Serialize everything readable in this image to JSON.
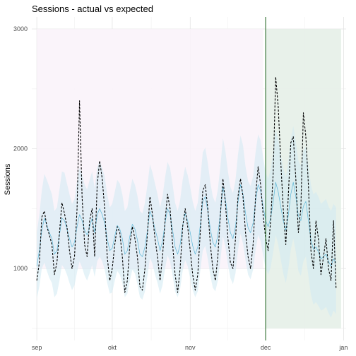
{
  "chart_data": {
    "type": "line",
    "title": "Sessions - actual vs expected",
    "xlabel": "",
    "ylabel": "Sessions",
    "x_start": "2017-09-01",
    "x_end": "2017-12-31",
    "xlim": [
      "2017-08-30",
      "2018-01-02"
    ],
    "ylim": [
      400,
      3100
    ],
    "x_ticks": [
      {
        "date": "2017-09-01",
        "label": "sep"
      },
      {
        "date": "2017-10-01",
        "label": "okt"
      },
      {
        "date": "2017-11-01",
        "label": "nov"
      },
      {
        "date": "2017-12-01",
        "label": "dec"
      },
      {
        "date": "2018-01-01",
        "label": "jan"
      }
    ],
    "y_ticks": [
      1000,
      2000,
      3000
    ],
    "grid": true,
    "legend": "none",
    "shaded_regions": [
      {
        "name": "pre-period",
        "x_start": "2017-09-01",
        "x_end": "2017-11-30",
        "y_min": 1000,
        "y_max": 3000,
        "color": "#f9f3f9"
      },
      {
        "name": "post-period",
        "x_start": "2017-12-01",
        "x_end": "2017-12-31",
        "y_min": 500,
        "y_max": 3000,
        "color": "#e5efe8"
      }
    ],
    "intervention": {
      "date": "2017-12-01",
      "color": "#1a5e1a"
    },
    "series": [
      {
        "style": "dashed",
        "color": "#000000",
        "values": [
          900,
          1050,
          1430,
          1480,
          1350,
          1280,
          1200,
          950,
          1050,
          1300,
          1550,
          1460,
          1350,
          1150,
          1000,
          1100,
          1500,
          2400,
          1600,
          1200,
          1100,
          1400,
          1500,
          1100,
          1700,
          1900,
          1750,
          1500,
          1100,
          900,
          1000,
          1200,
          1350,
          1300,
          1100,
          800,
          900,
          1200,
          1350,
          1250,
          1100,
          850,
          820,
          1000,
          1300,
          1600,
          1450,
          1250,
          1100,
          900,
          1100,
          1400,
          1620,
          1500,
          1200,
          950,
          800,
          1000,
          1350,
          1500,
          1350,
          1150,
          950,
          820,
          950,
          1300,
          1650,
          1700,
          1500,
          1200,
          1000,
          900,
          1100,
          1450,
          1750,
          1550,
          1250,
          1050,
          1000,
          1250,
          1600,
          1750,
          1600,
          1300,
          1100,
          1000,
          1200,
          1600,
          1850,
          1700,
          1450,
          1250,
          1150,
          1400,
          1800,
          2600,
          2350,
          1900,
          1500,
          1200,
          1600,
          2050,
          2100,
          1750,
          1300,
          1500,
          2300,
          2100,
          1700,
          1150,
          1000,
          1400,
          1250,
          950,
          1100,
          1250,
          1000,
          900,
          1400,
          830
        ]
      },
      {
        "style": "solid",
        "color": "#5fb8d8",
        "values": [
          1020,
          1150,
          1320,
          1420,
          1360,
          1300,
          1250,
          1120,
          1150,
          1280,
          1420,
          1400,
          1330,
          1250,
          1180,
          1220,
          1350,
          1450,
          1400,
          1320,
          1280,
          1350,
          1420,
          1300,
          1450,
          1500,
          1450,
          1380,
          1250,
          1150,
          1170,
          1270,
          1360,
          1330,
          1250,
          1120,
          1150,
          1270,
          1370,
          1330,
          1240,
          1120,
          1100,
          1180,
          1320,
          1480,
          1420,
          1330,
          1250,
          1150,
          1230,
          1380,
          1500,
          1450,
          1320,
          1180,
          1120,
          1200,
          1360,
          1460,
          1400,
          1300,
          1190,
          1120,
          1180,
          1360,
          1560,
          1600,
          1480,
          1330,
          1220,
          1180,
          1280,
          1460,
          1680,
          1580,
          1420,
          1300,
          1250,
          1350,
          1550,
          1700,
          1620,
          1460,
          1340,
          1300,
          1380,
          1560,
          1700,
          1650,
          1520,
          1400,
          1350,
          1420,
          1560,
          1720,
          1640,
          1520,
          1400,
          1320,
          1440,
          1620,
          1720,
          1600,
          1440,
          1400,
          1520,
          1560,
          1400,
          1240,
          1160,
          1180,
          1140,
          1080,
          1100,
          1120,
          1060,
          1020,
          1080,
          1050
        ]
      }
    ],
    "band": {
      "color": "#cfe9f3",
      "lower": [
        750,
        850,
        1000,
        1050,
        980,
        920,
        880,
        760,
        790,
        900,
        1030,
        1000,
        950,
        880,
        820,
        860,
        970,
        1060,
        1010,
        940,
        900,
        960,
        1030,
        930,
        1060,
        1100,
        1060,
        990,
        880,
        790,
        800,
        900,
        980,
        950,
        880,
        760,
        790,
        900,
        990,
        960,
        870,
        760,
        740,
        810,
        940,
        1090,
        1040,
        950,
        880,
        790,
        860,
        1000,
        1110,
        1060,
        940,
        810,
        760,
        830,
        980,
        1070,
        1020,
        920,
        820,
        760,
        810,
        980,
        1150,
        1190,
        1080,
        940,
        840,
        810,
        900,
        1070,
        1270,
        1180,
        1030,
        920,
        870,
        960,
        1150,
        1290,
        1210,
        1070,
        950,
        910,
        990,
        1150,
        1280,
        1230,
        1110,
        1000,
        950,
        1010,
        1140,
        1280,
        1200,
        1080,
        960,
        880,
        990,
        1160,
        1250,
        1140,
        980,
        940,
        1060,
        1100,
        940,
        780,
        700,
        720,
        690,
        650,
        660,
        680,
        630,
        590,
        650,
        620
      ],
      "upper": [
        1300,
        1450,
        1650,
        1790,
        1740,
        1680,
        1620,
        1480,
        1510,
        1660,
        1810,
        1800,
        1710,
        1620,
        1540,
        1580,
        1730,
        1840,
        1790,
        1700,
        1660,
        1740,
        1810,
        1670,
        1840,
        1900,
        1840,
        1770,
        1620,
        1510,
        1540,
        1640,
        1740,
        1710,
        1620,
        1480,
        1510,
        1640,
        1750,
        1700,
        1610,
        1480,
        1460,
        1550,
        1700,
        1870,
        1800,
        1710,
        1620,
        1510,
        1600,
        1760,
        1890,
        1840,
        1700,
        1550,
        1480,
        1570,
        1740,
        1850,
        1780,
        1680,
        1560,
        1480,
        1550,
        1740,
        1970,
        2010,
        1880,
        1720,
        1600,
        1550,
        1660,
        1850,
        2090,
        1980,
        1810,
        1680,
        1630,
        1740,
        1950,
        2110,
        2030,
        1850,
        1730,
        1690,
        1770,
        1970,
        2120,
        2070,
        1930,
        1800,
        1750,
        1830,
        1980,
        2160,
        2080,
        1960,
        1840,
        1760,
        1890,
        2080,
        2190,
        2060,
        1900,
        1860,
        1980,
        2020,
        1860,
        1700,
        1620,
        1640,
        1600,
        1540,
        1560,
        1580,
        1520,
        1480,
        1540,
        1510
      ]
    }
  }
}
